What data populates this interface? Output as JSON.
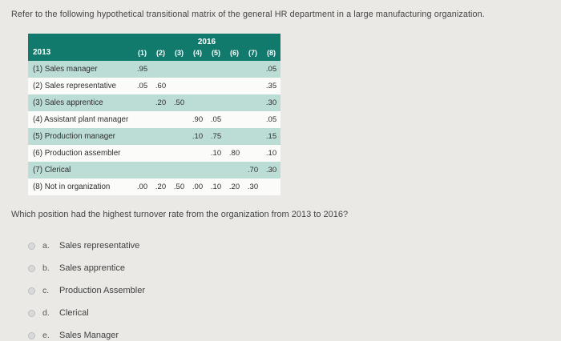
{
  "page": {
    "intro": "Refer to the following hypothetical transitional matrix of the general HR department in a large manufacturing organization.",
    "question": "Which position had the highest turnover rate from the organization from 2013 to 2016?"
  },
  "table": {
    "year_top": "2016",
    "year_left": "2013",
    "col_headers": [
      "(1)",
      "(2)",
      "(3)",
      "(4)",
      "(5)",
      "(6)",
      "(7)",
      "(8)"
    ],
    "rows": [
      {
        "label": "(1) Sales manager",
        "values": [
          ".95",
          "",
          "",
          "",
          "",
          "",
          "",
          ".05"
        ]
      },
      {
        "label": "(2) Sales representative",
        "values": [
          ".05",
          ".60",
          "",
          "",
          "",
          "",
          "",
          ".35"
        ]
      },
      {
        "label": "(3) Sales apprentice",
        "values": [
          "",
          ".20",
          ".50",
          "",
          "",
          "",
          "",
          ".30"
        ]
      },
      {
        "label": "(4) Assistant plant manager",
        "values": [
          "",
          "",
          "",
          ".90",
          ".05",
          "",
          "",
          ".05"
        ]
      },
      {
        "label": "(5) Production manager",
        "values": [
          "",
          "",
          "",
          ".10",
          ".75",
          "",
          "",
          ".15"
        ]
      },
      {
        "label": "(6) Production assembler",
        "values": [
          "",
          "",
          "",
          "",
          ".10",
          ".80",
          "",
          ".10"
        ]
      },
      {
        "label": "(7) Clerical",
        "values": [
          "",
          "",
          "",
          "",
          "",
          "",
          ".70",
          ".30"
        ]
      },
      {
        "label": "(8) Not in organization",
        "values": [
          ".00",
          ".20",
          ".50",
          ".00",
          ".10",
          ".20",
          ".30",
          ""
        ]
      }
    ]
  },
  "options": [
    {
      "key": "a.",
      "label": "Sales representative"
    },
    {
      "key": "b.",
      "label": "Sales apprentice"
    },
    {
      "key": "c.",
      "label": "Production Assembler"
    },
    {
      "key": "d.",
      "label": "Clerical"
    },
    {
      "key": "e.",
      "label": "Sales Manager"
    }
  ],
  "colors": {
    "header_bg": "#127a6d",
    "row_alt_bg": "#bcdcd6",
    "page_bg": "#eae9e6"
  }
}
